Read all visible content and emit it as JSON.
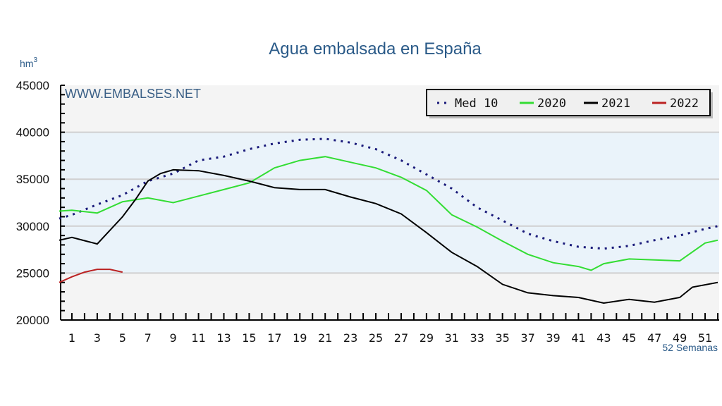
{
  "chart_data": {
    "type": "line",
    "title": "Agua embalsada en España",
    "ylabel": "hm",
    "ylabel_sup": "3",
    "xlabel": "52 Semanas",
    "watermark": "WWW.EMBALSES.NET",
    "ylim": [
      20000,
      45000
    ],
    "xlim": [
      0,
      52
    ],
    "yticks": [
      "20000",
      "25000",
      "30000",
      "35000",
      "40000",
      "45000"
    ],
    "xticks": [
      "1",
      "3",
      "5",
      "7",
      "9",
      "11",
      "13",
      "15",
      "17",
      "19",
      "21",
      "23",
      "25",
      "27",
      "29",
      "31",
      "33",
      "35",
      "37",
      "39",
      "41",
      "43",
      "45",
      "47",
      "49",
      "51"
    ],
    "legend_position": "top-right",
    "grid": true,
    "series": [
      {
        "name": "Med 10",
        "color": "#1a1a7a",
        "style": "dotted",
        "points": [
          [
            0,
            30800
          ],
          [
            1,
            31200
          ],
          [
            3,
            32300
          ],
          [
            5,
            33300
          ],
          [
            7,
            34800
          ],
          [
            9,
            35600
          ],
          [
            11,
            37000
          ],
          [
            13,
            37400
          ],
          [
            15,
            38200
          ],
          [
            17,
            38800
          ],
          [
            19,
            39200
          ],
          [
            21,
            39300
          ],
          [
            23,
            38900
          ],
          [
            25,
            38200
          ],
          [
            27,
            37000
          ],
          [
            29,
            35500
          ],
          [
            31,
            34000
          ],
          [
            33,
            32000
          ],
          [
            35,
            30600
          ],
          [
            37,
            29200
          ],
          [
            39,
            28400
          ],
          [
            41,
            27800
          ],
          [
            43,
            27600
          ],
          [
            45,
            27900
          ],
          [
            47,
            28500
          ],
          [
            49,
            29000
          ],
          [
            51,
            29700
          ],
          [
            52,
            30000
          ]
        ]
      },
      {
        "name": "2020",
        "color": "#33dd33",
        "style": "solid",
        "points": [
          [
            0,
            31600
          ],
          [
            1,
            31700
          ],
          [
            3,
            31400
          ],
          [
            5,
            32600
          ],
          [
            7,
            33000
          ],
          [
            9,
            32500
          ],
          [
            11,
            33200
          ],
          [
            13,
            33900
          ],
          [
            15,
            34600
          ],
          [
            17,
            36200
          ],
          [
            19,
            37000
          ],
          [
            21,
            37400
          ],
          [
            23,
            36800
          ],
          [
            25,
            36200
          ],
          [
            27,
            35200
          ],
          [
            29,
            33800
          ],
          [
            31,
            31200
          ],
          [
            33,
            29900
          ],
          [
            35,
            28400
          ],
          [
            37,
            27000
          ],
          [
            39,
            26100
          ],
          [
            41,
            25700
          ],
          [
            42,
            25300
          ],
          [
            43,
            26000
          ],
          [
            45,
            26500
          ],
          [
            47,
            26400
          ],
          [
            49,
            26300
          ],
          [
            51,
            28200
          ],
          [
            52,
            28500
          ]
        ]
      },
      {
        "name": "2021",
        "color": "#000000",
        "style": "solid",
        "points": [
          [
            0,
            28500
          ],
          [
            1,
            28800
          ],
          [
            3,
            28100
          ],
          [
            5,
            31000
          ],
          [
            6,
            32800
          ],
          [
            7,
            34800
          ],
          [
            8,
            35600
          ],
          [
            9,
            36000
          ],
          [
            11,
            35900
          ],
          [
            13,
            35400
          ],
          [
            15,
            34800
          ],
          [
            17,
            34100
          ],
          [
            19,
            33900
          ],
          [
            21,
            33900
          ],
          [
            23,
            33100
          ],
          [
            25,
            32400
          ],
          [
            27,
            31300
          ],
          [
            29,
            29300
          ],
          [
            31,
            27200
          ],
          [
            33,
            25700
          ],
          [
            35,
            23800
          ],
          [
            37,
            22900
          ],
          [
            39,
            22600
          ],
          [
            41,
            22400
          ],
          [
            43,
            21800
          ],
          [
            45,
            22200
          ],
          [
            47,
            21900
          ],
          [
            49,
            22400
          ],
          [
            50,
            23500
          ],
          [
            52,
            24000
          ]
        ]
      },
      {
        "name": "2022",
        "color": "#bb2222",
        "style": "solid",
        "points": [
          [
            0,
            24000
          ],
          [
            1,
            24600
          ],
          [
            2,
            25100
          ],
          [
            3,
            25400
          ],
          [
            4,
            25400
          ],
          [
            5,
            25100
          ]
        ]
      }
    ]
  }
}
